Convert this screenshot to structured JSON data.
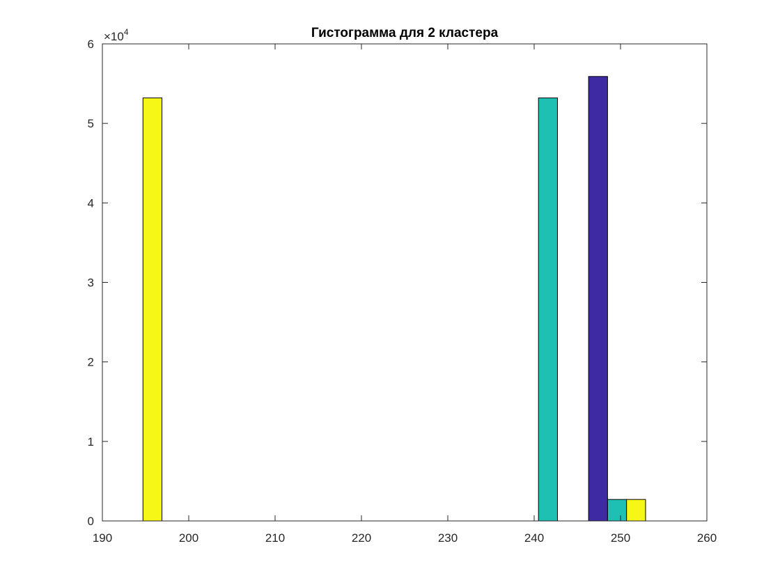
{
  "chart_data": {
    "type": "bar",
    "title": "Гистограмма для 2 кластера",
    "xlabel": "",
    "ylabel": "",
    "xlim": [
      190,
      260
    ],
    "ylim": [
      0,
      60000
    ],
    "x_ticks": [
      "190",
      "200",
      "210",
      "220",
      "230",
      "240",
      "250",
      "260"
    ],
    "y_ticks": [
      "0",
      "1",
      "2",
      "3",
      "4",
      "5",
      "6"
    ],
    "y_exponent": {
      "base": "×10",
      "power": "4"
    },
    "grid": false,
    "legend": "none",
    "bin_centers": [
      193.6,
      201.6,
      209.6,
      217.6,
      225.6,
      233.6,
      241.6,
      249.6,
      257.6
    ],
    "series": [
      {
        "color": "#3e2ba3",
        "values": [
          0,
          0,
          0,
          0,
          0,
          0,
          0,
          55900,
          0
        ]
      },
      {
        "color": "#1ec0b4",
        "values": [
          0,
          0,
          0,
          0,
          0,
          0,
          53200,
          2700,
          0
        ]
      },
      {
        "color": "#f7f716",
        "values": [
          53200,
          0,
          0,
          0,
          0,
          0,
          0,
          2700,
          0
        ]
      }
    ]
  }
}
